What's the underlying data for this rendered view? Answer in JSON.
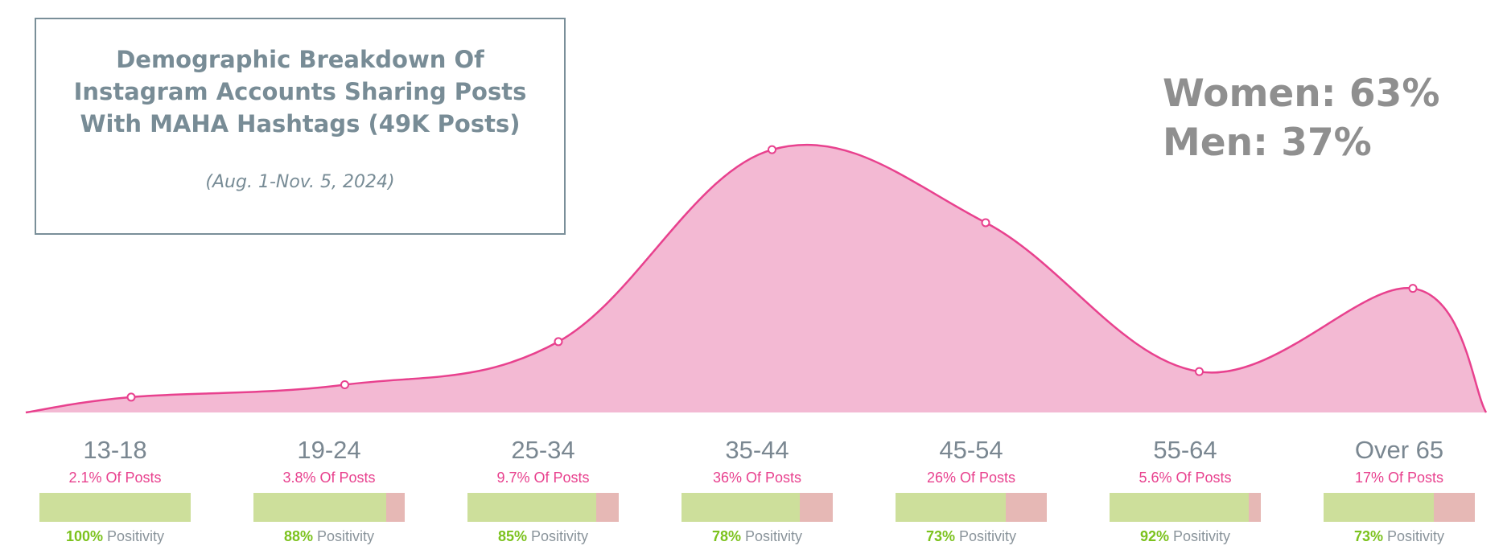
{
  "title": "Demographic Breakdown Of Instagram Accounts Sharing Posts With MAHA Hashtags  (49K Posts)",
  "subtitle": "(Aug. 1-Nov. 5, 2024)",
  "gender": {
    "women": "Women: 63%",
    "men": "Men: 37%"
  },
  "colors": {
    "area_fill": "#f3b9d3",
    "area_line": "#e8418e",
    "positive_bar": "#cddf9b",
    "negative_bar": "#e6b8b5",
    "positivity_value": "#7cc21e",
    "title": "#788c96"
  },
  "groups": [
    {
      "label": "13-18",
      "posts": "2.1% Of Posts",
      "positivity": "100%",
      "positivity_label": "Positivity"
    },
    {
      "label": "19-24",
      "posts": "3.8% Of Posts",
      "positivity": "88%",
      "positivity_label": "Positivity"
    },
    {
      "label": "25-34",
      "posts": "9.7% Of Posts",
      "positivity": "85%",
      "positivity_label": "Positivity"
    },
    {
      "label": "35-44",
      "posts": "36% Of Posts",
      "positivity": "78%",
      "positivity_label": "Positivity"
    },
    {
      "label": "45-54",
      "posts": "26% Of Posts",
      "positivity": "73%",
      "positivity_label": "Positivity"
    },
    {
      "label": "55-64",
      "posts": "5.6% Of Posts",
      "positivity": "92%",
      "positivity_label": "Positivity"
    },
    {
      "label": "Over 65",
      "posts": "17% Of Posts",
      "positivity": "73%",
      "positivity_label": "Positivity"
    }
  ],
  "chart_data": {
    "type": "area",
    "categories": [
      "13-18",
      "19-24",
      "25-34",
      "35-44",
      "45-54",
      "55-64",
      "Over 65"
    ],
    "series": [
      {
        "values": [
          2.1,
          3.8,
          9.7,
          36,
          26,
          5.6,
          17
        ]
      }
    ],
    "positivity": [
      100,
      88,
      85,
      78,
      73,
      92,
      73
    ],
    "ylim": [
      0,
      38
    ]
  }
}
